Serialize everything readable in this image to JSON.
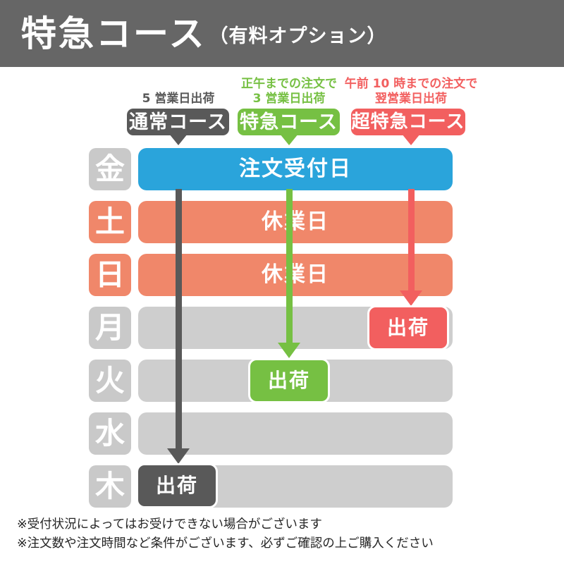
{
  "header": {
    "title": "特急コース",
    "subtitle": "（有料オプション）"
  },
  "colors": {
    "header_bg": "#666666",
    "normal_course": "#595959",
    "express_course": "#76c043",
    "super_express_course": "#f25f5f",
    "order_day_bar": "#2aa4db",
    "closed_day": "#f0876a",
    "weekday_gray": "#cecece",
    "day_label_gray": "#c9c9c9"
  },
  "courses": [
    {
      "id": "normal",
      "label": "通常コース",
      "note_lines": [
        "5 営業日出荷",
        ""
      ]
    },
    {
      "id": "express",
      "label": "特急コース",
      "note_lines": [
        "正午までの注文で",
        "3 営業日出荷"
      ]
    },
    {
      "id": "super-express",
      "label": "超特急コース",
      "note_lines": [
        "午前 10 時までの注文で",
        "翌営業日出荷"
      ]
    }
  ],
  "schedule": {
    "rows": [
      {
        "day": "金",
        "bar": "注文受付日"
      },
      {
        "day": "土",
        "bar": "休業日"
      },
      {
        "day": "日",
        "bar": "休業日"
      },
      {
        "day": "月",
        "badge": "出荷"
      },
      {
        "day": "火",
        "badge": "出荷"
      },
      {
        "day": "水",
        "bar": ""
      },
      {
        "day": "木",
        "badge": "出荷"
      }
    ]
  },
  "notes": [
    "※受付状況によってはお受けできない場合がございます",
    "※注文数や注文時間など条件がございます、必ずご確認の上ご購入ください"
  ]
}
